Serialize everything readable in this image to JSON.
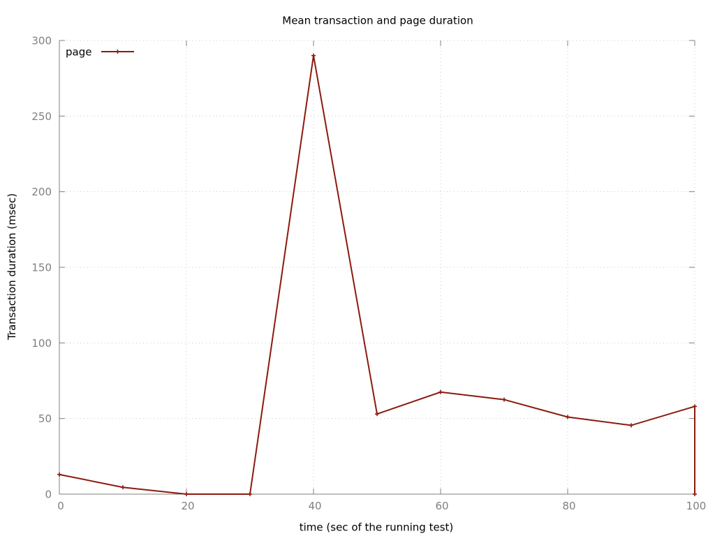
{
  "chart_data": {
    "type": "line",
    "title": "Mean transaction and page duration",
    "xlabel": "time (sec of the running test)",
    "ylabel": "Transaction duration (msec)",
    "xlim": [
      0,
      100
    ],
    "ylim": [
      0,
      300
    ],
    "xticks": [
      0,
      20,
      40,
      60,
      80,
      100
    ],
    "yticks": [
      0,
      50,
      100,
      150,
      200,
      250,
      300
    ],
    "grid": true,
    "legend_position": "top-left",
    "series": [
      {
        "name": "page",
        "color": "#8b1a0e",
        "marker": "plus",
        "points": [
          [
            0,
            13
          ],
          [
            10,
            4.5
          ],
          [
            20,
            0
          ],
          [
            30,
            0
          ],
          [
            40,
            290
          ],
          [
            50,
            53
          ],
          [
            60,
            67.5
          ],
          [
            70,
            62.5
          ],
          [
            80,
            51
          ],
          [
            90,
            45.5
          ],
          [
            100,
            58
          ],
          [
            100,
            0
          ]
        ]
      }
    ]
  }
}
